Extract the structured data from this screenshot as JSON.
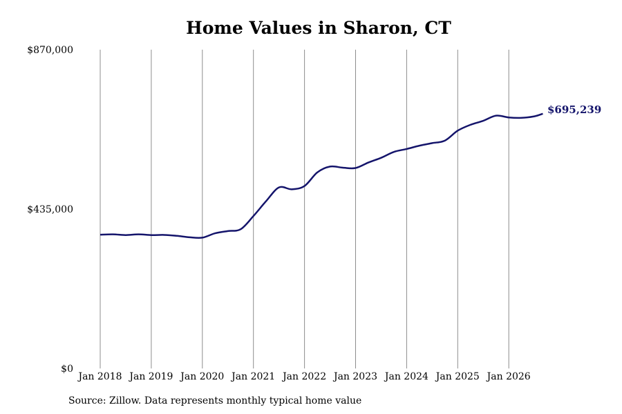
{
  "chart_data": {
    "type": "line",
    "title": "Home Values in Sharon, CT",
    "xlabel": "",
    "ylabel": "",
    "ylim": [
      0,
      870000
    ],
    "y_ticks": [
      0,
      435000,
      870000
    ],
    "y_tick_labels": [
      "$0",
      "$435,000",
      "$870,000"
    ],
    "x_tick_labels": [
      "Jan 2018",
      "Jan 2019",
      "Jan 2020",
      "Jan 2021",
      "Jan 2022",
      "Jan 2023",
      "Jan 2024",
      "Jan 2025",
      "Jan 2026"
    ],
    "grid": "vertical",
    "line_color": "#14146b",
    "end_value_label": "$695,239",
    "series": [
      {
        "x": [
          "2018-01",
          "2018-04",
          "2018-07",
          "2018-10",
          "2019-01",
          "2019-04",
          "2019-07",
          "2019-10",
          "2020-01",
          "2020-04",
          "2020-07",
          "2020-10",
          "2021-01",
          "2021-04",
          "2021-07",
          "2021-10",
          "2022-01",
          "2022-04",
          "2022-07",
          "2022-10",
          "2023-01",
          "2023-04",
          "2023-07",
          "2023-10",
          "2024-01",
          "2024-04",
          "2024-07",
          "2024-10",
          "2025-01",
          "2025-04",
          "2025-07",
          "2025-10",
          "2026-01",
          "2026-04",
          "2026-07",
          "2026-09"
        ],
        "values": [
          365000,
          366000,
          364000,
          366000,
          364000,
          364500,
          362000,
          358000,
          357000,
          369000,
          375000,
          380000,
          416000,
          457000,
          494000,
          489000,
          498000,
          535000,
          551000,
          548000,
          547000,
          562000,
          575000,
          591000,
          599000,
          608000,
          615000,
          622000,
          649000,
          665000,
          676000,
          690000,
          685000,
          684000,
          688000,
          695239
        ]
      }
    ]
  },
  "footer": {
    "source": "Source: Zillow. Data represents monthly typical home value"
  }
}
